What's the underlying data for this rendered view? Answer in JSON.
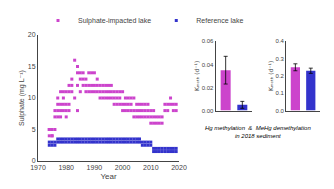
{
  "chart_data": [
    {
      "type": "scatter",
      "xlabel": "Year",
      "ylabel": "Sulphate (mg L⁻¹)",
      "xlim": [
        1970,
        2020
      ],
      "ylim": [
        0,
        20
      ],
      "xticks": [
        1970,
        1980,
        1990,
        2000,
        2010,
        2020
      ],
      "yticks": [
        0,
        5,
        10,
        15,
        20
      ],
      "grid": false,
      "legend": "upper left",
      "marker": "square",
      "series": [
        {
          "name": "Sulphate-impacted lake",
          "color": "#cc44cc",
          "x": [
            1974,
            1974,
            1974,
            1975,
            1975,
            1975,
            1976,
            1976,
            1976,
            1977,
            1977,
            1977,
            1977,
            1978,
            1978,
            1978,
            1978,
            1979,
            1979,
            1979,
            1979,
            1980,
            1980,
            1980,
            1980,
            1981,
            1981,
            1981,
            1981,
            1982,
            1982,
            1982,
            1983,
            1983,
            1984,
            1984,
            1984,
            1984,
            1985,
            1985,
            1985,
            1986,
            1986,
            1986,
            1987,
            1987,
            1987,
            1988,
            1988,
            1988,
            1989,
            1989,
            1989,
            1990,
            1990,
            1990,
            1991,
            1991,
            1991,
            1992,
            1992,
            1992,
            1993,
            1993,
            1993,
            1994,
            1994,
            1994,
            1995,
            1995,
            1995,
            1996,
            1996,
            1996,
            1997,
            1997,
            1997,
            1998,
            1998,
            1998,
            1999,
            1999,
            1999,
            2000,
            2000,
            2000,
            2001,
            2001,
            2001,
            2002,
            2002,
            2002,
            2003,
            2003,
            2003,
            2004,
            2004,
            2004,
            2005,
            2005,
            2005,
            2006,
            2006,
            2006,
            2007,
            2007,
            2007,
            2008,
            2008,
            2008,
            2009,
            2009,
            2009,
            2010,
            2010,
            2010,
            2011,
            2011,
            2011,
            2012,
            2012,
            2013,
            2013,
            2014,
            2014,
            2015,
            2015,
            2016,
            2016,
            2017,
            2017,
            2018,
            2018,
            2019,
            2019
          ],
          "values": [
            5,
            4,
            5,
            4,
            4,
            5,
            5,
            7,
            8,
            7,
            8,
            9,
            10,
            7,
            8,
            9,
            11,
            8,
            9,
            10,
            11,
            7,
            8,
            9,
            11,
            8,
            9,
            11,
            12,
            11,
            12,
            13,
            10,
            16,
            8,
            12,
            14,
            15,
            11,
            13,
            14,
            12,
            13,
            14,
            11,
            12,
            13,
            11,
            12,
            14,
            11,
            12,
            14,
            11,
            12,
            14,
            11,
            12,
            13,
            10,
            11,
            12,
            10,
            11,
            12,
            10,
            11,
            12,
            10,
            11,
            12,
            10,
            11,
            12,
            9,
            10,
            11,
            9,
            10,
            11,
            9,
            10,
            11,
            8,
            9,
            11,
            8,
            9,
            10,
            8,
            9,
            10,
            8,
            9,
            10,
            7,
            8,
            10,
            7,
            8,
            9,
            7,
            8,
            9,
            7,
            8,
            9,
            7,
            8,
            9,
            7,
            8,
            9,
            6,
            7,
            8,
            6,
            7,
            8,
            6,
            7,
            6,
            7,
            6,
            7,
            8,
            9,
            8,
            9,
            9,
            10,
            8,
            9,
            8,
            9
          ]
        },
        {
          "name": "Reference lake",
          "color": "#3333cc",
          "x": [
            1974,
            1974,
            1975,
            1975,
            1976,
            1976,
            1977,
            1977,
            1978,
            1978,
            1979,
            1979,
            1980,
            1980,
            1981,
            1981,
            1982,
            1982,
            1983,
            1983,
            1984,
            1984,
            1985,
            1985,
            1986,
            1986,
            1987,
            1987,
            1988,
            1988,
            1989,
            1989,
            1990,
            1990,
            1991,
            1991,
            1992,
            1992,
            1993,
            1993,
            1994,
            1994,
            1995,
            1995,
            1996,
            1996,
            1997,
            1997,
            1998,
            1998,
            1999,
            1999,
            2000,
            2000,
            2001,
            2001,
            2002,
            2002,
            2003,
            2003,
            2004,
            2004,
            2005,
            2005,
            2006,
            2006,
            2007,
            2007,
            2008,
            2008,
            2009,
            2009,
            2010,
            2010,
            2011,
            2011,
            2012,
            2012,
            2013,
            2013,
            2014,
            2014,
            2015,
            2015,
            2016,
            2016,
            2017,
            2017,
            2018,
            2018,
            2019,
            2019
          ],
          "values": [
            2.5,
            3,
            2.5,
            3,
            2.5,
            3,
            3,
            3.5,
            3,
            3.5,
            3,
            3.5,
            3,
            3.5,
            3,
            3.5,
            3,
            3.5,
            3,
            3.5,
            3,
            3.5,
            3,
            3.5,
            3,
            3.5,
            3,
            3.5,
            3,
            3.5,
            3,
            3.5,
            3,
            3.5,
            3,
            3.5,
            3,
            3.5,
            3,
            3.5,
            3,
            3.5,
            3,
            3.5,
            3,
            3.5,
            3,
            3.5,
            3,
            3.5,
            3,
            3.5,
            3,
            3.5,
            3,
            3.5,
            3,
            3.5,
            3,
            3.5,
            3,
            3.5,
            3,
            3.5,
            3,
            3.5,
            2.5,
            3,
            2.5,
            3,
            2.5,
            3,
            2.5,
            3,
            1.5,
            2,
            1.5,
            2,
            1.5,
            2,
            1.5,
            2,
            1.5,
            2,
            1.5,
            2,
            1.5,
            2,
            1.5,
            2,
            1.5,
            2
          ]
        }
      ]
    },
    {
      "type": "bar",
      "categories": [
        null,
        null
      ],
      "values": [
        0.035,
        0.005
      ],
      "errors": [
        0.012,
        0.003
      ],
      "colors": [
        "#cc44cc",
        "#3333cc"
      ],
      "ylabel": "Kₘₑₜₕ (d⁻¹)",
      "ylim": [
        0,
        0.06
      ],
      "yticks": [
        {
          "value": 0,
          "label": "0.00"
        },
        0.02,
        0.04,
        0.06
      ],
      "tick_labels": "y",
      "grid": false,
      "annotations": [
        "Hg methylation  &  MeHg demethylation\nin 2018 sediment"
      ]
    },
    {
      "type": "bar",
      "categories": [
        null,
        null
      ],
      "values": [
        0.25,
        0.23
      ],
      "errors": [
        0.02,
        0.015
      ],
      "colors": [
        "#cc44cc",
        "#3333cc"
      ],
      "ylabel": "Kₘₑₜₕ (d⁻¹)",
      "ylim": [
        0,
        0.4
      ],
      "yticks": [
        {
          "value": 0,
          "label": "0.0"
        },
        0.1,
        0.2,
        0.3,
        0.4
      ],
      "tick_labels": "y",
      "grid": false
    }
  ]
}
